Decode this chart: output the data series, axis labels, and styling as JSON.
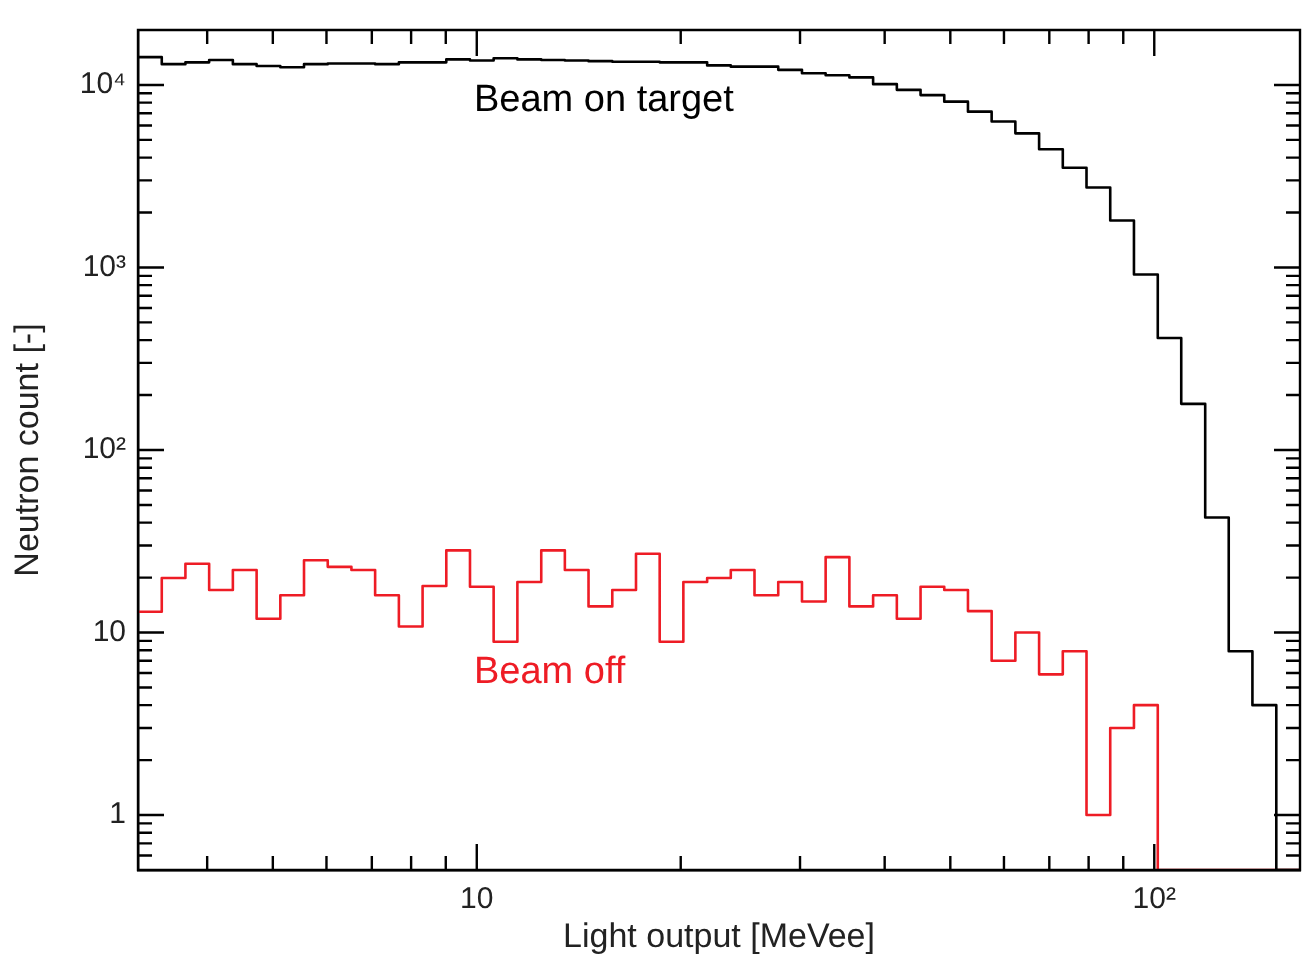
{
  "chart_data": {
    "type": "histogram",
    "xlabel": "Light output [MeVee]",
    "ylabel": "Neutron count [-]",
    "bins": [
      3.162,
      3.428,
      3.715,
      4.027,
      4.365,
      4.732,
      5.129,
      5.559,
      6.026,
      6.531,
      7.079,
      7.674,
      8.318,
      9.016,
      9.772,
      10.59,
      11.48,
      12.45,
      13.49,
      14.62,
      15.85,
      17.18,
      18.62,
      20.18,
      21.88,
      23.71,
      25.7,
      27.86,
      30.2,
      32.73,
      35.48,
      38.46,
      41.69,
      45.19,
      48.98,
      53.09,
      57.54,
      62.37,
      67.61,
      73.28,
      79.43,
      86.1,
      93.33,
      101.2,
      109.6,
      118.9,
      128.8,
      139.6,
      151.4,
      164.1
    ],
    "series": [
      {
        "color": "#000000",
        "values": [
          14200,
          13000,
          13300,
          13700,
          13000,
          12700,
          12500,
          13000,
          13100,
          13100,
          13000,
          13300,
          13300,
          13800,
          13600,
          14000,
          13800,
          13700,
          13600,
          13500,
          13400,
          13400,
          13300,
          13300,
          12800,
          12600,
          12600,
          12100,
          11600,
          11300,
          11000,
          10100,
          9400,
          8800,
          8100,
          7140,
          6300,
          5430,
          4440,
          3520,
          2740,
          1810,
          915,
          411,
          179,
          42.7,
          7.9,
          4.0,
          null
        ]
      },
      {
        "color": "#ee1c25",
        "values": [
          13.0,
          19.9,
          23.8,
          17.1,
          22.0,
          11.9,
          16.0,
          24.9,
          22.9,
          22.0,
          16.0,
          10.8,
          18.0,
          28.2,
          17.8,
          8.9,
          18.9,
          28.2,
          22.0,
          13.9,
          17.1,
          27.0,
          8.9,
          18.9,
          19.9,
          22.0,
          16.0,
          18.9,
          14.8,
          25.9,
          13.9,
          16.0,
          11.9,
          17.8,
          17.1,
          13.1,
          7.0,
          10.0,
          5.9,
          7.9,
          1.0,
          3.0,
          4.0,
          null,
          null,
          null,
          null,
          null,
          null
        ]
      }
    ],
    "annotations": [
      "Beam on target",
      "Beam off"
    ],
    "log": "xy",
    "grid": false,
    "legend": false,
    "xlim": [
      3.162,
      164.1
    ],
    "xticks": [
      {
        "value": 4,
        "label": null
      },
      {
        "value": 5,
        "label": null
      },
      {
        "value": 6,
        "label": null
      },
      {
        "value": 7,
        "label": null
      },
      {
        "value": 8,
        "label": null
      },
      {
        "value": 9,
        "label": null
      },
      10,
      {
        "value": 20,
        "label": null
      },
      {
        "value": 30,
        "label": null
      },
      {
        "value": 40,
        "label": null
      },
      {
        "value": 50,
        "label": null
      },
      {
        "value": 60,
        "label": null
      },
      {
        "value": 70,
        "label": null
      },
      {
        "value": 80,
        "label": null
      },
      {
        "value": 90,
        "label": null
      },
      {
        "value": 100,
        "label": "10²"
      }
    ],
    "ylim": [
      0.5,
      20000
    ],
    "yticks": [
      {
        "value": 0.6,
        "label": null
      },
      {
        "value": 0.7,
        "label": null
      },
      {
        "value": 0.8,
        "label": null
      },
      {
        "value": 0.9,
        "label": null
      },
      1,
      {
        "value": 2,
        "label": null
      },
      {
        "value": 3,
        "label": null
      },
      {
        "value": 4,
        "label": null
      },
      {
        "value": 5,
        "label": null
      },
      {
        "value": 6,
        "label": null
      },
      {
        "value": 7,
        "label": null
      },
      {
        "value": 8,
        "label": null
      },
      {
        "value": 9,
        "label": null
      },
      10,
      {
        "value": 20,
        "label": null
      },
      {
        "value": 30,
        "label": null
      },
      {
        "value": 40,
        "label": null
      },
      {
        "value": 50,
        "label": null
      },
      {
        "value": 60,
        "label": null
      },
      {
        "value": 70,
        "label": null
      },
      {
        "value": 80,
        "label": null
      },
      {
        "value": 90,
        "label": null
      },
      {
        "value": 100,
        "label": "10²"
      },
      {
        "value": 200,
        "label": null
      },
      {
        "value": 300,
        "label": null
      },
      {
        "value": 400,
        "label": null
      },
      {
        "value": 500,
        "label": null
      },
      {
        "value": 600,
        "label": null
      },
      {
        "value": 700,
        "label": null
      },
      {
        "value": 800,
        "label": null
      },
      {
        "value": 900,
        "label": null
      },
      {
        "value": 1000,
        "label": "10³"
      },
      {
        "value": 2000,
        "label": null
      },
      {
        "value": 3000,
        "label": null
      },
      {
        "value": 4000,
        "label": null
      },
      {
        "value": 5000,
        "label": null
      },
      {
        "value": 6000,
        "label": null
      },
      {
        "value": 7000,
        "label": null
      },
      {
        "value": 8000,
        "label": null
      },
      {
        "value": 9000,
        "label": null
      },
      {
        "value": 10000,
        "label": "10⁴"
      }
    ]
  }
}
